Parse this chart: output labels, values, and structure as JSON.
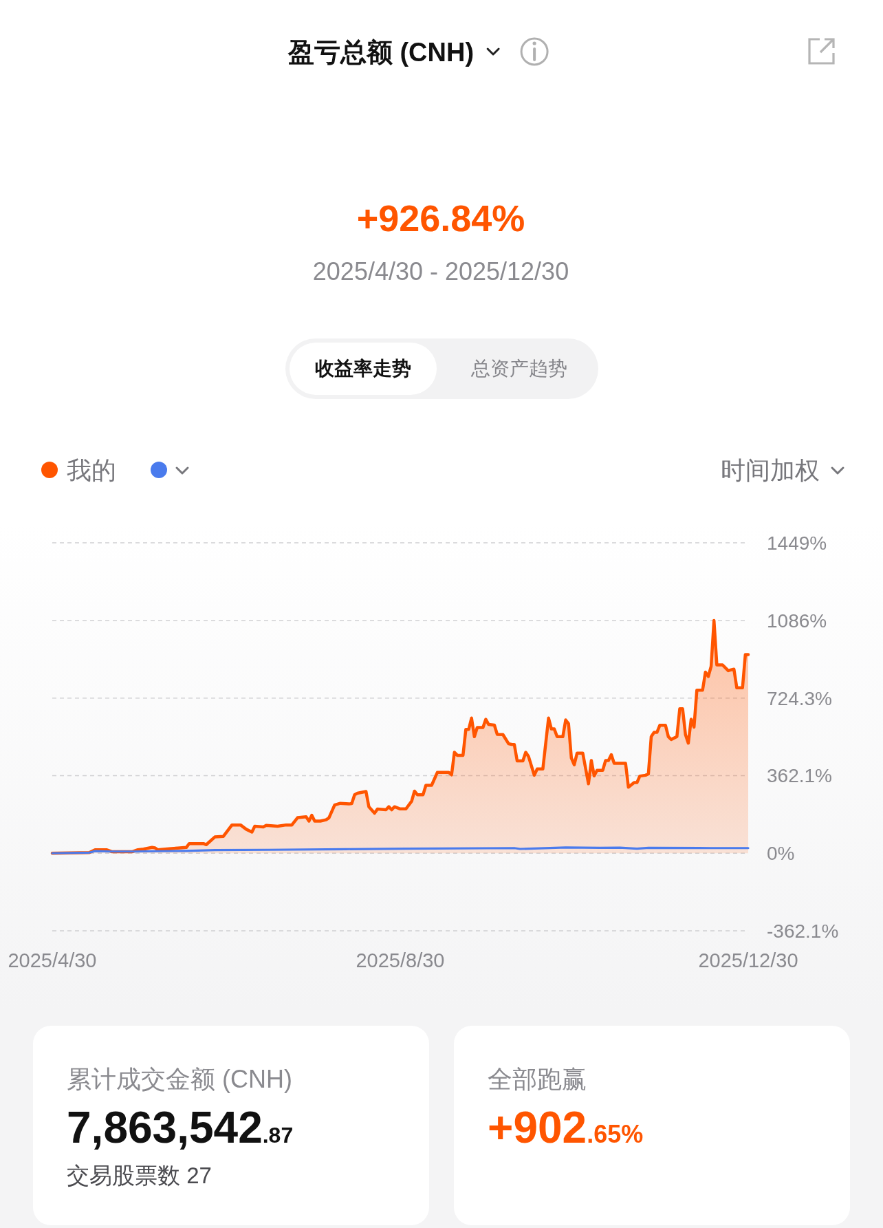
{
  "chart_data": {
    "type": "area",
    "title": "盈亏总额 (CNH)",
    "annotations": [
      "+926.84%",
      "2025/4/30 - 2025/12/30",
      "收益率走势",
      "总资产趋势",
      "时间加权",
      "累计成交金额 (CNH)",
      "7,863,542.87",
      "交易股票数 27",
      "全部跑赢",
      "+902.65%"
    ],
    "xlim": [
      "2025-04-30",
      "2025-12-30"
    ],
    "xticks": [
      {
        "value": "2025-04-30",
        "label": "2025/4/30"
      },
      {
        "value": "2025-08-30",
        "label": "2025/8/30"
      },
      {
        "value": "2025-12-30",
        "label": "2025/12/30"
      }
    ],
    "ylim": [
      -362.1,
      1449
    ],
    "yticks": [
      {
        "value": -362.1,
        "label": "-362.1%"
      },
      {
        "value": 0,
        "label": "0%"
      },
      {
        "value": 362.1,
        "label": "362.1%"
      },
      {
        "value": 724.3,
        "label": "724.3%"
      },
      {
        "value": 1086,
        "label": "1086%"
      },
      {
        "value": 1449,
        "label": "1449%"
      }
    ],
    "grid": "y",
    "legend": "top left",
    "series": [
      {
        "name": "我的",
        "color": "#ff5500",
        "x": [
          "2025-04-30",
          "2025-05-13",
          "2025-05-15",
          "2025-05-19",
          "2025-05-21",
          "2025-05-28",
          "2025-05-30",
          "2025-06-01",
          "2025-06-04",
          "2025-06-05",
          "2025-06-06",
          "2025-06-10",
          "2025-06-13",
          "2025-06-16",
          "2025-06-17",
          "2025-06-22",
          "2025-06-23",
          "2025-06-26",
          "2025-06-29",
          "2025-07-02",
          "2025-07-05",
          "2025-07-07",
          "2025-07-09",
          "2025-07-10",
          "2025-07-13",
          "2025-07-14",
          "2025-07-18",
          "2025-07-21",
          "2025-07-23",
          "2025-07-25",
          "2025-07-28",
          "2025-07-29",
          "2025-07-30",
          "2025-07-31",
          "2025-08-02",
          "2025-08-04",
          "2025-08-05",
          "2025-08-07",
          "2025-08-09",
          "2025-08-12",
          "2025-08-13",
          "2025-08-14",
          "2025-08-15",
          "2025-08-18",
          "2025-08-19",
          "2025-08-21",
          "2025-08-22",
          "2025-08-25",
          "2025-08-26",
          "2025-08-27",
          "2025-08-28",
          "2025-08-30",
          "2025-09-01",
          "2025-09-03",
          "2025-09-04",
          "2025-09-05",
          "2025-09-07",
          "2025-09-08",
          "2025-09-10",
          "2025-09-12",
          "2025-09-16",
          "2025-09-17",
          "2025-09-18",
          "2025-09-19",
          "2025-09-21",
          "2025-09-22",
          "2025-09-23",
          "2025-09-24",
          "2025-09-25",
          "2025-09-26",
          "2025-09-28",
          "2025-09-29",
          "2025-09-30",
          "2025-10-02",
          "2025-10-03",
          "2025-10-05",
          "2025-10-07",
          "2025-10-08",
          "2025-10-09",
          "2025-10-10",
          "2025-10-12",
          "2025-10-13",
          "2025-10-14",
          "2025-10-16",
          "2025-10-17",
          "2025-10-19",
          "2025-10-21",
          "2025-10-22",
          "2025-10-23",
          "2025-10-24",
          "2025-10-26",
          "2025-10-27",
          "2025-10-28",
          "2025-10-29",
          "2025-10-30",
          "2025-10-31",
          "2025-11-02",
          "2025-11-04",
          "2025-11-05",
          "2025-11-06",
          "2025-11-07",
          "2025-11-09",
          "2025-11-10",
          "2025-11-11",
          "2025-11-12",
          "2025-11-13",
          "2025-11-17",
          "2025-11-18",
          "2025-11-20",
          "2025-11-21",
          "2025-11-22",
          "2025-11-24",
          "2025-11-25",
          "2025-11-26",
          "2025-11-27",
          "2025-11-28",
          "2025-11-29",
          "2025-12-01",
          "2025-12-02",
          "2025-12-03",
          "2025-12-05",
          "2025-12-06",
          "2025-12-07",
          "2025-12-08",
          "2025-12-09",
          "2025-12-10",
          "2025-12-11",
          "2025-12-12",
          "2025-12-14",
          "2025-12-15",
          "2025-12-16",
          "2025-12-17",
          "2025-12-18",
          "2025-12-19",
          "2025-12-21",
          "2025-12-23",
          "2025-12-24",
          "2025-12-25",
          "2025-12-26",
          "2025-12-28",
          "2025-12-29",
          "2025-12-30"
        ],
        "values": [
          0,
          3,
          16,
          16,
          7,
          7,
          16,
          19,
          27,
          25,
          16,
          21,
          24,
          27,
          45,
          45,
          40,
          76,
          79,
          132,
          132,
          112,
          99,
          126,
          123,
          130,
          126,
          132,
          132,
          166,
          170,
          150,
          177,
          150,
          150,
          156,
          165,
          225,
          233,
          230,
          232,
          273,
          280,
          288,
          217,
          187,
          206,
          203,
          217,
          203,
          217,
          207,
          207,
          243,
          290,
          273,
          273,
          317,
          317,
          377,
          377,
          366,
          471,
          457,
          457,
          578,
          578,
          631,
          544,
          587,
          587,
          625,
          601,
          598,
          555,
          554,
          511,
          508,
          507,
          431,
          431,
          471,
          451,
          364,
          393,
          393,
          631,
          580,
          580,
          544,
          544,
          622,
          605,
          444,
          413,
          467,
          467,
          324,
          433,
          361,
          387,
          387,
          433,
          433,
          460,
          420,
          420,
          308,
          330,
          330,
          360,
          364,
          370,
          544,
          564,
          564,
          597,
          597,
          544,
          531,
          544,
          674,
          674,
          554,
          514,
          625,
          589,
          761,
          761,
          845,
          825,
          872,
          1086,
          879,
          879,
          852,
          856,
          859,
          772,
          772,
          927,
          927
        ]
      },
      {
        "type": "line",
        "color": "#4a7bed",
        "x": [
          "2025-04-30",
          "2025-05-13",
          "2025-05-15",
          "2025-05-21",
          "2025-05-28",
          "2025-06-16",
          "2025-06-26",
          "2025-07-15",
          "2025-08-11",
          "2025-09-01",
          "2025-10-09",
          "2025-10-11",
          "2025-10-27",
          "2025-11-08",
          "2025-11-15",
          "2025-11-21",
          "2025-11-25",
          "2025-12-17",
          "2025-12-30"
        ],
        "values": [
          0,
          3,
          10,
          8,
          8,
          11,
          15,
          16,
          19,
          21,
          24,
          20,
          27,
          25,
          26,
          21,
          25,
          24,
          24
        ]
      }
    ]
  }
}
